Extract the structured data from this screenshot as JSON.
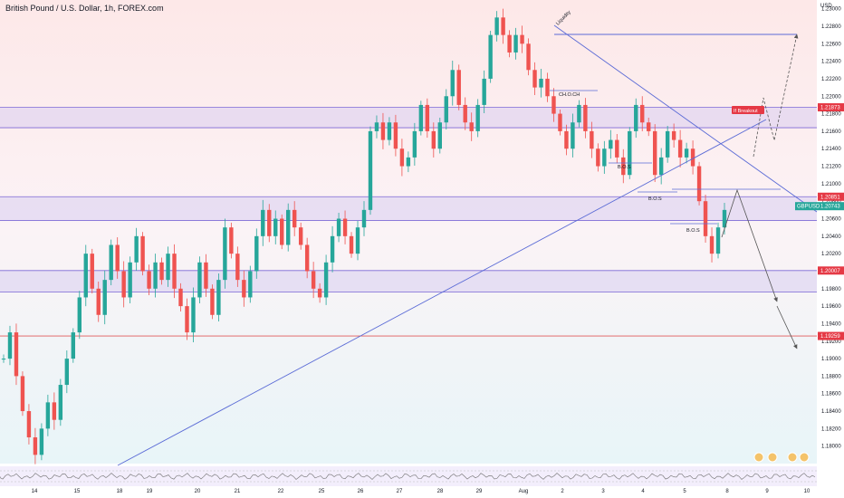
{
  "header": {
    "title": "British Pound / U.S. Dollar, 1h, FOREX.com"
  },
  "currency": "USD",
  "colors": {
    "bull": "#26a69a",
    "bear": "#ef5350",
    "zone_fill": "#d9cdf0",
    "zone_line": "#7b68d6",
    "trend": "#5b6bd6",
    "arrow": "#555555",
    "tag_red": "#e53945",
    "tag_teal": "#26a69a",
    "bg_top": "#fde8e8",
    "bg_bottom": "#e8f5f8"
  },
  "chart_data": {
    "type": "candlestick",
    "symbol": "GBPUSD",
    "ylim": [
      1.178,
      1.231
    ],
    "x_tick_labels": [
      "14",
      "15",
      "18",
      "19",
      "20",
      "21",
      "22",
      "25",
      "26",
      "27",
      "28",
      "29",
      "Aug",
      "2",
      "3",
      "4",
      "5",
      "8",
      "9",
      "10"
    ],
    "y_tick_labels": [
      "1.23000",
      "1.22800",
      "1.22600",
      "1.22400",
      "1.22200",
      "1.22000",
      "1.21800",
      "1.21600",
      "1.21400",
      "1.21200",
      "1.21000",
      "1.20800",
      "1.20600",
      "1.20400",
      "1.20200",
      "1.20000",
      "1.19800",
      "1.19600",
      "1.19400",
      "1.19200",
      "1.19000",
      "1.18800",
      "1.18600",
      "1.18400",
      "1.18200",
      "1.18000"
    ],
    "y_tick_values": [
      1.23,
      1.228,
      1.226,
      1.224,
      1.222,
      1.22,
      1.218,
      1.216,
      1.214,
      1.212,
      1.21,
      1.208,
      1.206,
      1.204,
      1.202,
      1.2,
      1.198,
      1.196,
      1.194,
      1.192,
      1.19,
      1.188,
      1.186,
      1.184,
      1.182,
      1.18
    ],
    "price_tags": [
      {
        "label": "1.21873",
        "value": 1.21873,
        "color": "#e53945"
      },
      {
        "label": "1.20851",
        "value": 1.20851,
        "color": "#e53945"
      },
      {
        "label": "1.20743",
        "value": 1.20743,
        "color": "#26a69a"
      },
      {
        "label": "1.20007",
        "value": 1.20007,
        "color": "#e53945"
      },
      {
        "label": "1.19259",
        "value": 1.19259,
        "color": "#e53945"
      }
    ],
    "symbol_tag": "GBPUSD",
    "zones": [
      {
        "top": 1.21873,
        "bottom": 1.2164
      },
      {
        "top": 1.20851,
        "bottom": 1.2058
      },
      {
        "top": 1.20007,
        "bottom": 1.1976
      }
    ],
    "level_line": {
      "value": 1.19259
    },
    "path": [
      1.19,
      1.193,
      1.188,
      1.184,
      1.181,
      1.179,
      1.182,
      1.185,
      1.183,
      1.187,
      1.19,
      1.193,
      1.197,
      1.202,
      1.198,
      1.195,
      1.199,
      1.203,
      1.2,
      1.197,
      1.201,
      1.204,
      1.2,
      1.198,
      1.201,
      1.199,
      1.202,
      1.198,
      1.196,
      1.193,
      1.197,
      1.201,
      1.198,
      1.195,
      1.199,
      1.205,
      1.202,
      1.199,
      1.197,
      1.2,
      1.204,
      1.207,
      1.204,
      1.206,
      1.203,
      1.207,
      1.205,
      1.203,
      1.2,
      1.198,
      1.197,
      1.201,
      1.204,
      1.206,
      1.204,
      1.202,
      1.205,
      1.207,
      1.216,
      1.217,
      1.215,
      1.217,
      1.214,
      1.212,
      1.213,
      1.216,
      1.219,
      1.216,
      1.214,
      1.217,
      1.22,
      1.223,
      1.219,
      1.217,
      1.216,
      1.219,
      1.222,
      1.227,
      1.229,
      1.227,
      1.225,
      1.227,
      1.226,
      1.223,
      1.221,
      1.222,
      1.22,
      1.218,
      1.216,
      1.214,
      1.217,
      1.219,
      1.216,
      1.214,
      1.212,
      1.214,
      1.215,
      1.213,
      1.211,
      1.216,
      1.219,
      1.217,
      1.216,
      1.211,
      1.213,
      1.216,
      1.215,
      1.213,
      1.214,
      1.212,
      1.208,
      1.204,
      1.202,
      1.205,
      1.207
    ],
    "annotations": [
      {
        "text": "Liquidity"
      },
      {
        "text": "CH.O.CH"
      },
      {
        "text": "B.O.S"
      },
      {
        "text": "B.O.S"
      },
      {
        "text": "B.O.S"
      },
      {
        "text": "If Breakout"
      }
    ]
  }
}
